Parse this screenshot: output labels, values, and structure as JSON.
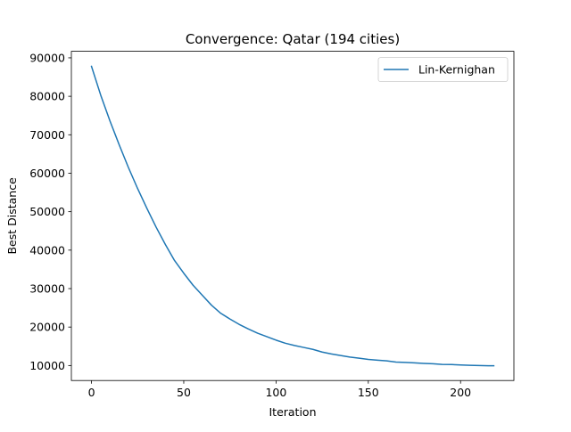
{
  "chart_data": {
    "type": "line",
    "title": "Convergence: Qatar (194 cities)",
    "xlabel": "Iteration",
    "ylabel": "Best Distance",
    "xlim": [
      -10.9,
      228.9
    ],
    "ylim": [
      6100,
      91700
    ],
    "xticks": [
      0,
      50,
      100,
      150,
      200
    ],
    "xtick_labels": [
      "0",
      "50",
      "100",
      "150",
      "200"
    ],
    "yticks": [
      10000,
      20000,
      30000,
      40000,
      50000,
      60000,
      70000,
      80000,
      90000
    ],
    "ytick_labels": [
      "10000",
      "20000",
      "30000",
      "40000",
      "50000",
      "60000",
      "70000",
      "80000",
      "90000"
    ],
    "grid": false,
    "legend_position": "upper-right",
    "series": [
      {
        "name": "Lin-Kernighan",
        "color": "#1f77b4",
        "x": [
          0,
          5,
          10,
          15,
          20,
          25,
          30,
          35,
          40,
          45,
          50,
          55,
          60,
          65,
          70,
          75,
          80,
          85,
          90,
          95,
          100,
          105,
          110,
          115,
          120,
          125,
          130,
          135,
          140,
          145,
          150,
          155,
          160,
          165,
          170,
          175,
          180,
          185,
          190,
          195,
          200,
          205,
          210,
          215,
          218
        ],
        "y": [
          87800,
          80300,
          73600,
          67400,
          61500,
          56000,
          50900,
          46000,
          41500,
          37300,
          34000,
          30900,
          28300,
          25700,
          23600,
          22100,
          20700,
          19500,
          18400,
          17500,
          16600,
          15800,
          15200,
          14700,
          14200,
          13500,
          13000,
          12600,
          12200,
          11900,
          11600,
          11400,
          11200,
          10900,
          10800,
          10700,
          10550,
          10450,
          10300,
          10250,
          10150,
          10050,
          10000,
          9950,
          9950
        ]
      }
    ]
  }
}
